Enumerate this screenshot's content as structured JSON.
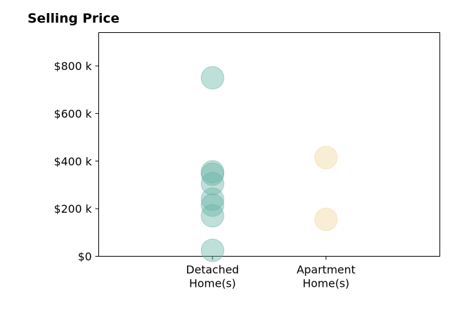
{
  "chart_data": {
    "type": "scatter",
    "title": "Selling Price",
    "xlabel": "",
    "ylabel": "",
    "categories": [
      [
        "Detached",
        "Home(s)"
      ],
      [
        "Apartment",
        "Home(s)"
      ]
    ],
    "ylim": [
      0,
      940000
    ],
    "yticks": [
      0,
      200000,
      400000,
      600000,
      800000
    ],
    "ytick_labels": [
      "$0",
      "$200 k",
      "$400 k",
      "$600 k",
      "$800 k"
    ],
    "grid": false,
    "legend": "none",
    "series": [
      {
        "category": "Detached Home(s)",
        "color": "#66b2a5",
        "values": [
          750000,
          355000,
          345000,
          305000,
          240000,
          215000,
          170000,
          25000
        ]
      },
      {
        "category": "Apartment Home(s)",
        "color": "#f0d59e",
        "values": [
          415000,
          155000
        ]
      }
    ]
  }
}
